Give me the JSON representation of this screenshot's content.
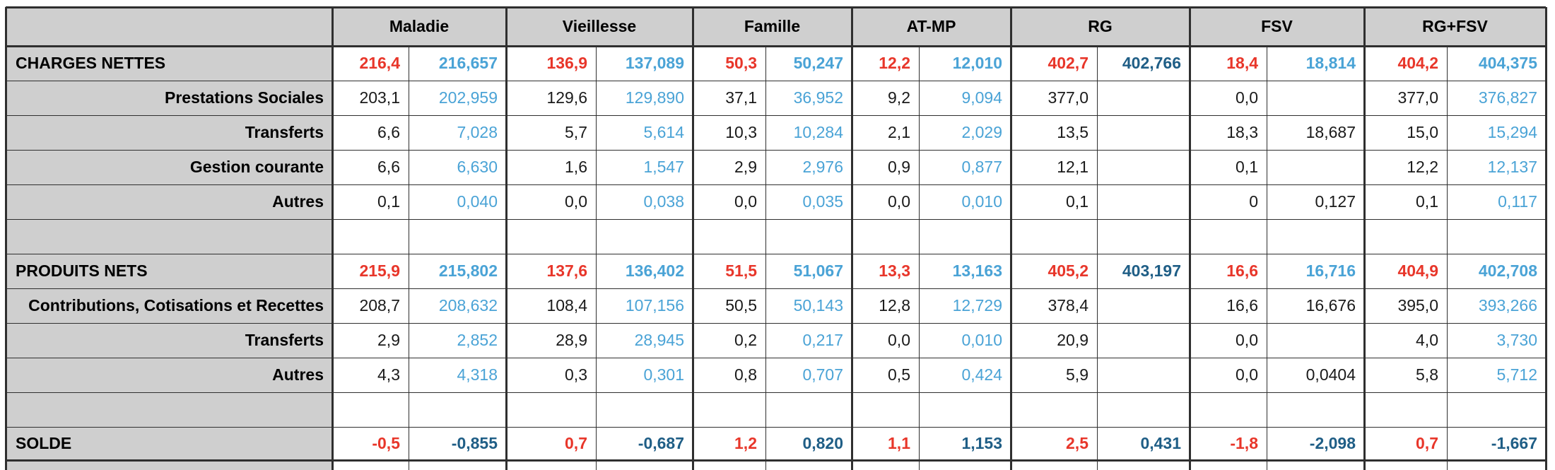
{
  "colors": {
    "red": "#e8362a",
    "blue": "#4aa3d6",
    "darkblue": "#1f5e86",
    "black": "#1a1a1a",
    "header_bg": "#cfcfcf"
  },
  "headers": [
    "Maladie",
    "Vieillesse",
    "Famille",
    "AT-MP",
    "RG",
    "FSV",
    "RG+FSV"
  ],
  "rows": [
    {
      "label": "CHARGES NETTES",
      "style": "section",
      "values": [
        [
          "216,4",
          "red"
        ],
        [
          "216,657",
          "blue"
        ],
        [
          "136,9",
          "red"
        ],
        [
          "137,089",
          "blue"
        ],
        [
          "50,3",
          "red"
        ],
        [
          "50,247",
          "blue"
        ],
        [
          "12,2",
          "red"
        ],
        [
          "12,010",
          "blue"
        ],
        [
          "402,7",
          "red"
        ],
        [
          "402,766",
          "darkblue"
        ],
        [
          "18,4",
          "red"
        ],
        [
          "18,814",
          "blue"
        ],
        [
          "404,2",
          "red"
        ],
        [
          "404,375",
          "blue"
        ]
      ]
    },
    {
      "label": "Prestations Sociales",
      "style": "sub",
      "values": [
        [
          "203,1",
          "black"
        ],
        [
          "202,959",
          "blue"
        ],
        [
          "129,6",
          "black"
        ],
        [
          "129,890",
          "blue"
        ],
        [
          "37,1",
          "black"
        ],
        [
          "36,952",
          "blue"
        ],
        [
          "9,2",
          "black"
        ],
        [
          "9,094",
          "blue"
        ],
        [
          "377,0",
          "black"
        ],
        [
          "",
          ""
        ],
        [
          "0,0",
          "black"
        ],
        [
          "",
          ""
        ],
        [
          "377,0",
          "black"
        ],
        [
          "376,827",
          "blue"
        ]
      ]
    },
    {
      "label": "Transferts",
      "style": "sub",
      "values": [
        [
          "6,6",
          "black"
        ],
        [
          "7,028",
          "blue"
        ],
        [
          "5,7",
          "black"
        ],
        [
          "5,614",
          "blue"
        ],
        [
          "10,3",
          "black"
        ],
        [
          "10,284",
          "blue"
        ],
        [
          "2,1",
          "black"
        ],
        [
          "2,029",
          "blue"
        ],
        [
          "13,5",
          "black"
        ],
        [
          "",
          ""
        ],
        [
          "18,3",
          "black"
        ],
        [
          "18,687",
          "black"
        ],
        [
          "15,0",
          "black"
        ],
        [
          "15,294",
          "blue"
        ]
      ]
    },
    {
      "label": "Gestion courante",
      "style": "sub",
      "values": [
        [
          "6,6",
          "black"
        ],
        [
          "6,630",
          "blue"
        ],
        [
          "1,6",
          "black"
        ],
        [
          "1,547",
          "blue"
        ],
        [
          "2,9",
          "black"
        ],
        [
          "2,976",
          "blue"
        ],
        [
          "0,9",
          "black"
        ],
        [
          "0,877",
          "blue"
        ],
        [
          "12,1",
          "black"
        ],
        [
          "",
          ""
        ],
        [
          "0,1",
          "black"
        ],
        [
          "",
          ""
        ],
        [
          "12,2",
          "black"
        ],
        [
          "12,137",
          "blue"
        ]
      ]
    },
    {
      "label": "Autres",
      "style": "sub",
      "values": [
        [
          "0,1",
          "black"
        ],
        [
          "0,040",
          "blue"
        ],
        [
          "0,0",
          "black"
        ],
        [
          "0,038",
          "blue"
        ],
        [
          "0,0",
          "black"
        ],
        [
          "0,035",
          "blue"
        ],
        [
          "0,0",
          "black"
        ],
        [
          "0,010",
          "blue"
        ],
        [
          "0,1",
          "black"
        ],
        [
          "",
          ""
        ],
        [
          "0",
          "black"
        ],
        [
          "0,127",
          "black"
        ],
        [
          "0,1",
          "black"
        ],
        [
          "0,117",
          "blue"
        ]
      ]
    },
    {
      "label": "",
      "style": "empty",
      "values": []
    },
    {
      "label": "PRODUITS NETS",
      "style": "section",
      "values": [
        [
          "215,9",
          "red"
        ],
        [
          "215,802",
          "blue"
        ],
        [
          "137,6",
          "red"
        ],
        [
          "136,402",
          "blue"
        ],
        [
          "51,5",
          "red"
        ],
        [
          "51,067",
          "blue"
        ],
        [
          "13,3",
          "red"
        ],
        [
          "13,163",
          "blue"
        ],
        [
          "405,2",
          "red"
        ],
        [
          "403,197",
          "darkblue"
        ],
        [
          "16,6",
          "red"
        ],
        [
          "16,716",
          "blue"
        ],
        [
          "404,9",
          "red"
        ],
        [
          "402,708",
          "blue"
        ]
      ]
    },
    {
      "label": "Contributions, Cotisations et Recettes",
      "style": "sub",
      "values": [
        [
          "208,7",
          "black"
        ],
        [
          "208,632",
          "blue"
        ],
        [
          "108,4",
          "black"
        ],
        [
          "107,156",
          "blue"
        ],
        [
          "50,5",
          "black"
        ],
        [
          "50,143",
          "blue"
        ],
        [
          "12,8",
          "black"
        ],
        [
          "12,729",
          "blue"
        ],
        [
          "378,4",
          "black"
        ],
        [
          "",
          ""
        ],
        [
          "16,6",
          "black"
        ],
        [
          "16,676",
          "black"
        ],
        [
          "395,0",
          "black"
        ],
        [
          "393,266",
          "blue"
        ]
      ]
    },
    {
      "label": "Transferts",
      "style": "sub",
      "values": [
        [
          "2,9",
          "black"
        ],
        [
          "2,852",
          "blue"
        ],
        [
          "28,9",
          "black"
        ],
        [
          "28,945",
          "blue"
        ],
        [
          "0,2",
          "black"
        ],
        [
          "0,217",
          "blue"
        ],
        [
          "0,0",
          "black"
        ],
        [
          "0,010",
          "blue"
        ],
        [
          "20,9",
          "black"
        ],
        [
          "",
          ""
        ],
        [
          "0,0",
          "black"
        ],
        [
          "",
          ""
        ],
        [
          "4,0",
          "black"
        ],
        [
          "3,730",
          "blue"
        ]
      ]
    },
    {
      "label": "Autres",
      "style": "sub",
      "values": [
        [
          "4,3",
          "black"
        ],
        [
          "4,318",
          "blue"
        ],
        [
          "0,3",
          "black"
        ],
        [
          "0,301",
          "blue"
        ],
        [
          "0,8",
          "black"
        ],
        [
          "0,707",
          "blue"
        ],
        [
          "0,5",
          "black"
        ],
        [
          "0,424",
          "blue"
        ],
        [
          "5,9",
          "black"
        ],
        [
          "",
          ""
        ],
        [
          "0,0",
          "black"
        ],
        [
          "0,0404",
          "black"
        ],
        [
          "5,8",
          "black"
        ],
        [
          "5,712",
          "blue"
        ]
      ]
    },
    {
      "label": "",
      "style": "empty",
      "values": []
    },
    {
      "label": "SOLDE",
      "style": "section",
      "values": [
        [
          "-0,5",
          "red"
        ],
        [
          "-0,855",
          "darkblue"
        ],
        [
          "0,7",
          "red"
        ],
        [
          "-0,687",
          "darkblue"
        ],
        [
          "1,2",
          "red"
        ],
        [
          "0,820",
          "darkblue"
        ],
        [
          "1,1",
          "red"
        ],
        [
          "1,153",
          "darkblue"
        ],
        [
          "2,5",
          "red"
        ],
        [
          "0,431",
          "darkblue"
        ],
        [
          "-1,8",
          "red"
        ],
        [
          "-2,098",
          "darkblue"
        ],
        [
          "0,7",
          "red"
        ],
        [
          "-1,667",
          "darkblue"
        ]
      ]
    }
  ]
}
